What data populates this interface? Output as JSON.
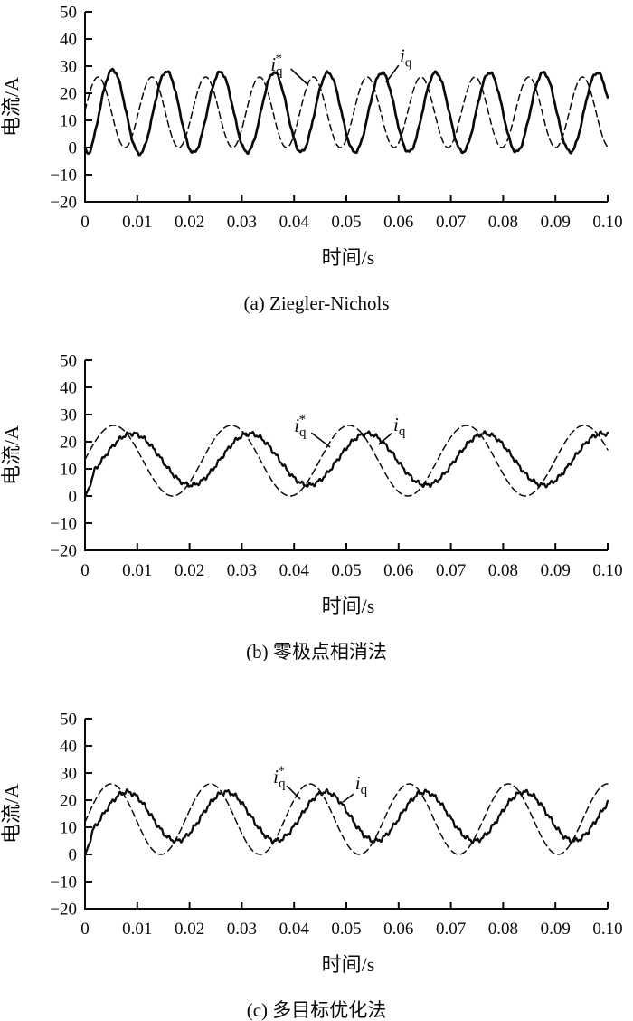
{
  "page": {
    "background": "#ffffff",
    "ink": "#0a0a0a"
  },
  "chart_data": [
    {
      "type": "line",
      "caption": "(a) Ziegler-Nichols",
      "xlabel": "时间/s",
      "ylabel": "电流/A",
      "xlim": [
        0,
        0.1
      ],
      "ylim": [
        -20,
        50
      ],
      "grid": false,
      "legend_position": "none",
      "x_ticks": [
        0,
        0.01,
        0.02,
        0.03,
        0.04,
        0.05,
        0.06,
        0.07,
        0.08,
        0.09,
        0.1
      ],
      "x_tick_labels": [
        "0",
        "0.01",
        "0.02",
        "0.03",
        "0.04",
        "0.05",
        "0.06",
        "0.07",
        "0.08",
        "0.09",
        "0.10"
      ],
      "y_ticks": [
        50,
        40,
        30,
        20,
        10,
        0,
        -10,
        -20
      ],
      "y_tick_labels": [
        "50",
        "40",
        "30",
        "20",
        "10",
        "0",
        "−10",
        "−20"
      ],
      "series": [
        {
          "name": "iq_ref",
          "style": "dashed",
          "waveform": {
            "kind": "sine",
            "mean": 13,
            "amplitude": 13,
            "period_s": 0.0103,
            "peak_time_s": 0.0025,
            "noise_amplitude": 0
          }
        },
        {
          "name": "iq",
          "style": "solid",
          "waveform": {
            "kind": "sine",
            "mean": 13,
            "amplitude": 14.6,
            "period_s": 0.0103,
            "peak_time_s": 0.0053,
            "noise_amplitude": 0.35,
            "start_ramp_s": 0.0006,
            "amp_decay": 1.6
          }
        }
      ],
      "annotations": [
        {
          "series": "iq_ref",
          "label_parts": {
            "base": "i",
            "sub": "q",
            "sup": "*"
          },
          "text_at": {
            "t": 0.0355,
            "A": 28.3
          },
          "leader": {
            "from": {
              "t": 0.0394,
              "A": 29
            },
            "to": {
              "t": 0.0427,
              "A": 23
            }
          }
        },
        {
          "series": "iq",
          "label_parts": {
            "base": "i",
            "sub": "q"
          },
          "text_at": {
            "t": 0.0602,
            "A": 31.5
          },
          "leader": {
            "from": {
              "t": 0.06,
              "A": 30.3
            },
            "to": {
              "t": 0.0576,
              "A": 24
            }
          }
        }
      ]
    },
    {
      "type": "line",
      "caption": "(b) 零极点相消法",
      "xlabel": "时间/s",
      "ylabel": "电流/A",
      "xlim": [
        0,
        0.1
      ],
      "ylim": [
        -20,
        50
      ],
      "grid": false,
      "legend_position": "none",
      "x_ticks": [
        0,
        0.01,
        0.02,
        0.03,
        0.04,
        0.05,
        0.06,
        0.07,
        0.08,
        0.09,
        0.1
      ],
      "x_tick_labels": [
        "0",
        "0.01",
        "0.02",
        "0.03",
        "0.04",
        "0.05",
        "0.06",
        "0.07",
        "0.08",
        "0.09",
        "0.10"
      ],
      "y_ticks": [
        50,
        40,
        30,
        20,
        10,
        0,
        -10,
        -20
      ],
      "y_tick_labels": [
        "50",
        "40",
        "30",
        "20",
        "10",
        "0",
        "−10",
        "−20"
      ],
      "series": [
        {
          "name": "iq_ref",
          "style": "dashed",
          "waveform": {
            "kind": "sine",
            "mean": 13,
            "amplitude": 13,
            "period_s": 0.0225,
            "peak_time_s": 0.0055,
            "noise_amplitude": 0
          }
        },
        {
          "name": "iq",
          "style": "solid",
          "waveform": {
            "kind": "sine",
            "mean": 13.5,
            "amplitude": 9.5,
            "period_s": 0.0225,
            "peak_time_s": 0.009,
            "noise_amplitude": 0.55,
            "start_ramp_s": 0.0018
          }
        }
      ],
      "annotations": [
        {
          "series": "iq_ref",
          "label_parts": {
            "base": "i",
            "sub": "q",
            "sup": "*"
          },
          "text_at": {
            "t": 0.04,
            "A": 23.7
          },
          "leader": {
            "from": {
              "t": 0.0433,
              "A": 23.3
            },
            "to": {
              "t": 0.0469,
              "A": 18
            }
          }
        },
        {
          "series": "iq",
          "label_parts": {
            "base": "i",
            "sub": "q"
          },
          "text_at": {
            "t": 0.059,
            "A": 24
          },
          "leader": {
            "from": {
              "t": 0.0588,
              "A": 23.3
            },
            "to": {
              "t": 0.0562,
              "A": 19
            }
          }
        }
      ]
    },
    {
      "type": "line",
      "caption": "(c) 多目标优化法",
      "xlabel": "时间/s",
      "ylabel": "电流/A",
      "xlim": [
        0,
        0.1
      ],
      "ylim": [
        -20,
        50
      ],
      "grid": false,
      "legend_position": "none",
      "x_ticks": [
        0,
        0.01,
        0.02,
        0.03,
        0.04,
        0.05,
        0.06,
        0.07,
        0.08,
        0.09,
        0.1
      ],
      "x_tick_labels": [
        "0",
        "0.01",
        "0.02",
        "0.03",
        "0.04",
        "0.05",
        "0.06",
        "0.07",
        "0.08",
        "0.09",
        "0.10"
      ],
      "y_ticks": [
        50,
        40,
        30,
        20,
        10,
        0,
        -10,
        -20
      ],
      "y_tick_labels": [
        "50",
        "40",
        "30",
        "20",
        "10",
        "0",
        "−10",
        "−20"
      ],
      "series": [
        {
          "name": "iq_ref",
          "style": "dashed",
          "waveform": {
            "kind": "sine",
            "mean": 13,
            "amplitude": 13,
            "period_s": 0.019,
            "peak_time_s": 0.005,
            "noise_amplitude": 0
          }
        },
        {
          "name": "iq",
          "style": "solid",
          "waveform": {
            "kind": "sine",
            "mean": 14,
            "amplitude": 9,
            "period_s": 0.019,
            "peak_time_s": 0.008,
            "noise_amplitude": 0.6,
            "start_ramp_s": 0.0015
          }
        }
      ],
      "annotations": [
        {
          "series": "iq_ref",
          "label_parts": {
            "base": "i",
            "sub": "q",
            "sup": "*"
          },
          "text_at": {
            "t": 0.036,
            "A": 26.3
          },
          "leader": {
            "from": {
              "t": 0.0386,
              "A": 25.3
            },
            "to": {
              "t": 0.0412,
              "A": 20.3
            }
          }
        },
        {
          "series": "iq",
          "label_parts": {
            "base": "i",
            "sub": "q"
          },
          "text_at": {
            "t": 0.0517,
            "A": 24
          },
          "leader": {
            "from": {
              "t": 0.0514,
              "A": 22.3
            },
            "to": {
              "t": 0.0493,
              "A": 19.3
            }
          }
        }
      ]
    }
  ]
}
